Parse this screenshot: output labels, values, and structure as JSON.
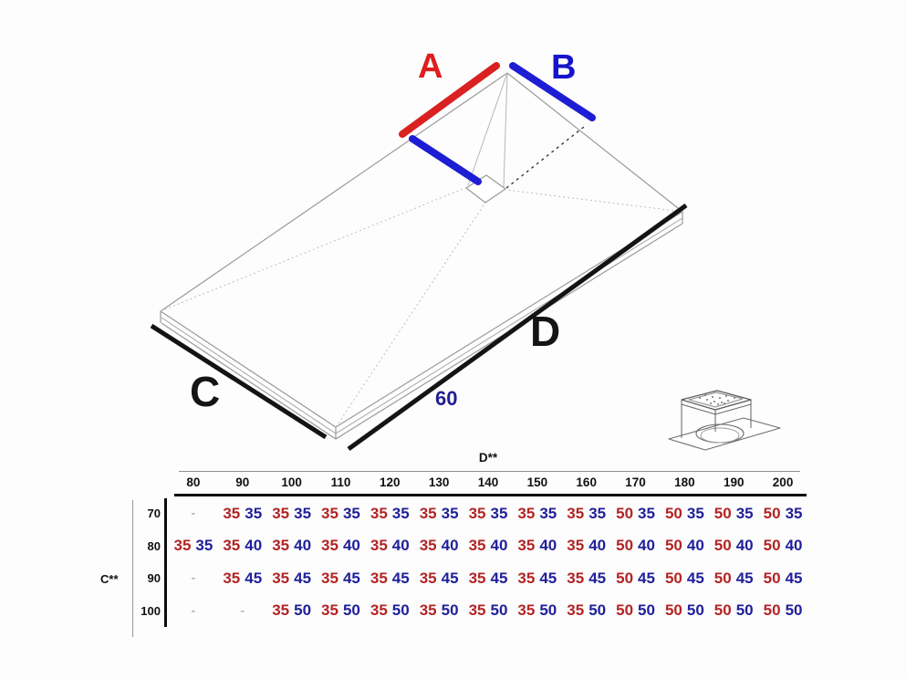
{
  "diagram": {
    "label_a": "A",
    "label_b": "B",
    "label_c": "C",
    "label_d": "D",
    "drain_dim": "60",
    "icons": {
      "drain": "isometric-drain-grate-icon"
    }
  },
  "table": {
    "col_axis_label": "D**",
    "row_axis_label": "C**",
    "columns": [
      "80",
      "90",
      "100",
      "110",
      "120",
      "130",
      "140",
      "150",
      "160",
      "170",
      "180",
      "190",
      "200"
    ],
    "rows": [
      {
        "label": "70",
        "cells": [
          [
            "-"
          ],
          [
            "35",
            "35"
          ],
          [
            "35",
            "35"
          ],
          [
            "35",
            "35"
          ],
          [
            "35",
            "35"
          ],
          [
            "35",
            "35"
          ],
          [
            "35",
            "35"
          ],
          [
            "35",
            "35"
          ],
          [
            "35",
            "35"
          ],
          [
            "50",
            "35"
          ],
          [
            "50",
            "35"
          ],
          [
            "50",
            "35"
          ],
          [
            "50",
            "35"
          ]
        ]
      },
      {
        "label": "80",
        "cells": [
          [
            "35",
            "35"
          ],
          [
            "35",
            "40"
          ],
          [
            "35",
            "40"
          ],
          [
            "35",
            "40"
          ],
          [
            "35",
            "40"
          ],
          [
            "35",
            "40"
          ],
          [
            "35",
            "40"
          ],
          [
            "35",
            "40"
          ],
          [
            "35",
            "40"
          ],
          [
            "50",
            "40"
          ],
          [
            "50",
            "40"
          ],
          [
            "50",
            "40"
          ],
          [
            "50",
            "40"
          ]
        ]
      },
      {
        "label": "90",
        "cells": [
          [
            "-"
          ],
          [
            "35",
            "45"
          ],
          [
            "35",
            "45"
          ],
          [
            "35",
            "45"
          ],
          [
            "35",
            "45"
          ],
          [
            "35",
            "45"
          ],
          [
            "35",
            "45"
          ],
          [
            "35",
            "45"
          ],
          [
            "35",
            "45"
          ],
          [
            "50",
            "45"
          ],
          [
            "50",
            "45"
          ],
          [
            "50",
            "45"
          ],
          [
            "50",
            "45"
          ]
        ]
      },
      {
        "label": "100",
        "cells": [
          [
            "-"
          ],
          [
            "-"
          ],
          [
            "35",
            "50"
          ],
          [
            "35",
            "50"
          ],
          [
            "35",
            "50"
          ],
          [
            "35",
            "50"
          ],
          [
            "35",
            "50"
          ],
          [
            "35",
            "50"
          ],
          [
            "35",
            "50"
          ],
          [
            "50",
            "50"
          ],
          [
            "50",
            "50"
          ],
          [
            "50",
            "50"
          ],
          [
            "50",
            "50"
          ]
        ]
      }
    ]
  },
  "colors": {
    "measure_a_red": "#da2020",
    "measure_b_blue": "#1d1dd4",
    "measure_cd_black": "#141414",
    "value_red": "#b32424",
    "value_blue": "#20209a",
    "outline_gray": "#9a9a9a"
  }
}
